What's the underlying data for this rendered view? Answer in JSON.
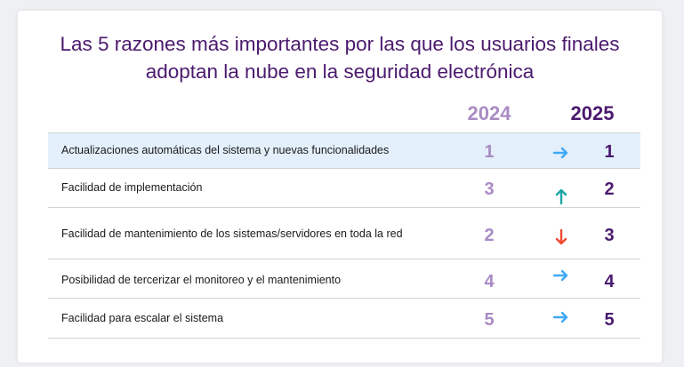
{
  "title": {
    "line1": "Las 5 razones más importantes por las que los usuarios finales",
    "line2": "adoptan la nube en la seguridad electrónica"
  },
  "headers": {
    "year_a": "2024",
    "year_b": "2025"
  },
  "colors": {
    "title": "#4b1a6e",
    "rank_2024": "#a98bc4",
    "rank_2025": "#4b1a6e",
    "arrow_same": "#3fa9f5",
    "arrow_up": "#1aa6a6",
    "arrow_down": "#f0492f",
    "highlight_row": "#e3effb"
  },
  "rows": [
    {
      "label": "Actualizaciones automáticas del sistema y nuevas funcionalidades",
      "rank_2024": "1",
      "rank_2025": "1",
      "trend": "right-arrow-icon"
    },
    {
      "label": "Facilidad de implementación",
      "rank_2024": "3",
      "rank_2025": "2",
      "trend": "up-arrow-icon"
    },
    {
      "label": "Facilidad de mantenimiento de los sistemas/servidores en toda la red",
      "rank_2024": "2",
      "rank_2025": "3",
      "trend": "down-arrow-icon"
    },
    {
      "label": "Posibilidad de tercerizar el monitoreo y el mantenimiento",
      "rank_2024": "4",
      "rank_2025": "4",
      "trend": "right-arrow-icon"
    },
    {
      "label": "Facilidad para escalar el sistema",
      "rank_2024": "5",
      "rank_2025": "5",
      "trend": "right-arrow-icon"
    }
  ]
}
